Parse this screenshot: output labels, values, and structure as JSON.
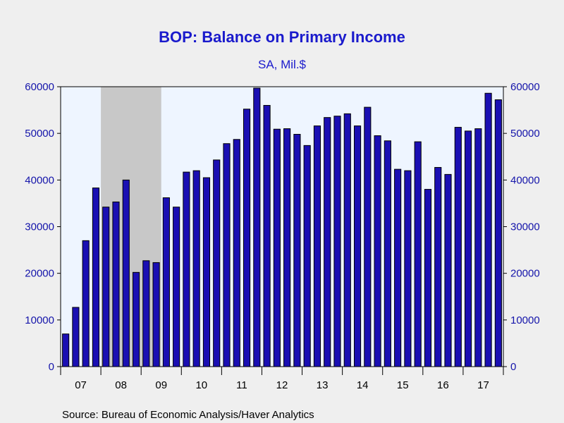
{
  "chart_data": {
    "type": "bar",
    "title": "BOP: Balance on Primary Income",
    "subtitle": "SA, Mil.$",
    "source": "Source:  Bureau of Economic Analysis/Haver Analytics",
    "ylim": [
      0,
      60000
    ],
    "yticks": [
      0,
      10000,
      20000,
      30000,
      40000,
      50000,
      60000
    ],
    "ytick_labels": [
      "0",
      "10000",
      "20000",
      "30000",
      "40000",
      "50000",
      "60000"
    ],
    "x_year_labels": [
      "07",
      "08",
      "09",
      "10",
      "11",
      "12",
      "13",
      "14",
      "15",
      "16",
      "17"
    ],
    "frequency": "quarterly",
    "start": "2007-Q1",
    "recession_shading": {
      "from": "2008-Q1",
      "to": "2009-Q2"
    },
    "values": [
      7000,
      12700,
      27000,
      38300,
      34200,
      35300,
      40000,
      20200,
      22700,
      22300,
      36200,
      34200,
      41700,
      42000,
      40500,
      44300,
      47800,
      48700,
      55200,
      59700,
      56000,
      50900,
      51000,
      49800,
      47400,
      51600,
      53400,
      53700,
      54200,
      51600,
      55600,
      49500,
      48400,
      42300,
      42000,
      48200,
      38000,
      42700,
      41200,
      51300,
      50500,
      51000,
      58600,
      57200
    ],
    "colors": {
      "bar": "#1a0fb3",
      "bar_edge": "#000000",
      "axis": "#1414aa",
      "title": "#1a1acc",
      "plot_bg": "#eef5ff",
      "recession": "#c8c8c8",
      "page_bg": "#efefef"
    }
  }
}
